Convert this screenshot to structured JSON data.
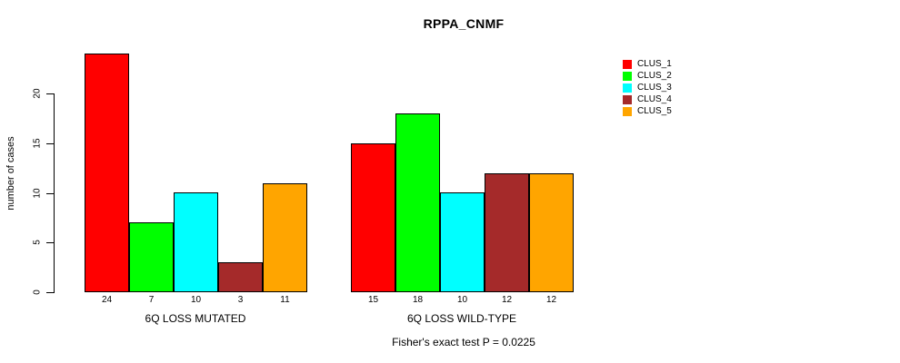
{
  "chart_data": {
    "type": "bar",
    "title": "RPPA_CNMF",
    "ylabel": "number of cases",
    "xlabel": "",
    "ylim": [
      0,
      24
    ],
    "yticks": [
      0,
      5,
      10,
      15,
      20
    ],
    "grid": false,
    "legend_position": "right",
    "series_names": [
      "CLUS_1",
      "CLUS_2",
      "CLUS_3",
      "CLUS_4",
      "CLUS_5"
    ],
    "series_colors": [
      "#ff0000",
      "#00ff00",
      "#00ffff",
      "#a52a2a",
      "#ffa500"
    ],
    "groups": [
      {
        "label": "6Q LOSS MUTATED",
        "values": [
          24,
          7,
          10,
          3,
          11
        ]
      },
      {
        "label": "6Q LOSS WILD-TYPE",
        "values": [
          15,
          18,
          10,
          12,
          12
        ]
      }
    ],
    "bar_value_labels": [
      [
        24,
        7,
        10,
        3,
        11
      ],
      [
        15,
        18,
        10,
        12,
        12
      ]
    ],
    "annotation": "Fisher's exact test P = 0.0225"
  },
  "colors": {
    "background": "#ffffff",
    "axis": "#000000",
    "text": "#000000"
  }
}
